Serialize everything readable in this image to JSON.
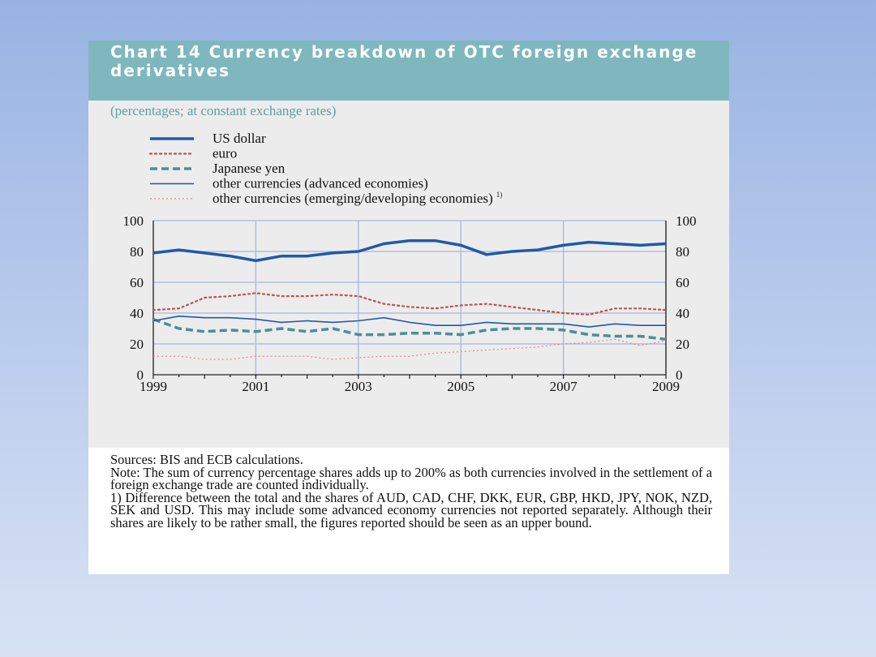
{
  "title": "Chart 14 Currency breakdown of OTC foreign exchange derivatives",
  "subtitle": "(percentages; at constant exchange rates)",
  "chart_data": {
    "type": "line",
    "title": "Chart 14 Currency breakdown of OTC foreign exchange derivatives",
    "subtitle": "(percentages; at constant exchange rates)",
    "xlabel": "",
    "ylabel": "",
    "x": [
      1999,
      1999.5,
      2000,
      2000.5,
      2001,
      2001.5,
      2002,
      2002.5,
      2003,
      2003.5,
      2004,
      2004.5,
      2005,
      2005.5,
      2006,
      2006.5,
      2007,
      2007.5,
      2008,
      2008.5,
      2009
    ],
    "xlim": [
      1999,
      2009
    ],
    "ylim": [
      0,
      100
    ],
    "x_ticks": [
      "1999",
      "2001",
      "2003",
      "2005",
      "2007",
      "2009"
    ],
    "y_ticks": [
      "0",
      "20",
      "40",
      "60",
      "80",
      "100"
    ],
    "grid": true,
    "legend_position": "top-left",
    "series": [
      {
        "name": "US dollar",
        "color": "#1f5aa8",
        "style": "solid-thick",
        "values": [
          79,
          81,
          79,
          77,
          74,
          77,
          77,
          79,
          80,
          85,
          87,
          87,
          84,
          78,
          80,
          81,
          84,
          86,
          85,
          84,
          85
        ]
      },
      {
        "name": "euro",
        "color": "#c0504d",
        "style": "dotted",
        "values": [
          42,
          43,
          50,
          51,
          53,
          51,
          51,
          52,
          51,
          46,
          44,
          43,
          45,
          46,
          44,
          42,
          40,
          39,
          43,
          43,
          42
        ]
      },
      {
        "name": "Japanese yen",
        "color": "#4a8f99",
        "style": "dashed",
        "values": [
          36,
          30,
          28,
          29,
          28,
          30,
          28,
          30,
          26,
          26,
          27,
          27,
          26,
          29,
          30,
          30,
          29,
          26,
          25,
          25,
          23
        ]
      },
      {
        "name": "other currencies (advanced economies)",
        "color": "#1f5aa8",
        "style": "solid-thin",
        "values": [
          35,
          38,
          37,
          37,
          36,
          34,
          35,
          34,
          35,
          37,
          34,
          32,
          32,
          34,
          33,
          33,
          33,
          31,
          33,
          32,
          32
        ]
      },
      {
        "name": "other currencies (emerging/developing economies)",
        "superscript": "1)",
        "color": "#d98a8a",
        "style": "fine-dotted",
        "values": [
          12,
          12,
          10,
          10,
          12,
          12,
          12,
          10,
          11,
          12,
          12,
          14,
          15,
          16,
          17,
          18,
          20,
          21,
          23,
          19,
          22
        ]
      }
    ]
  },
  "notes": {
    "sources": "Sources: BIS and ECB calculations.",
    "note": "Note: The sum of currency percentage shares adds up to 200% as both currencies involved in the settlement of a foreign exchange trade are counted individually.",
    "footnote": "1) Difference between the total and the shares of AUD, CAD, CHF, DKK, EUR, GBP, HKD, JPY, NOK, NZD, SEK and USD. This may include some advanced economy currencies not reported separately. Although their shares are likely to be rather small, the figures reported should be seen as an upper bound."
  }
}
